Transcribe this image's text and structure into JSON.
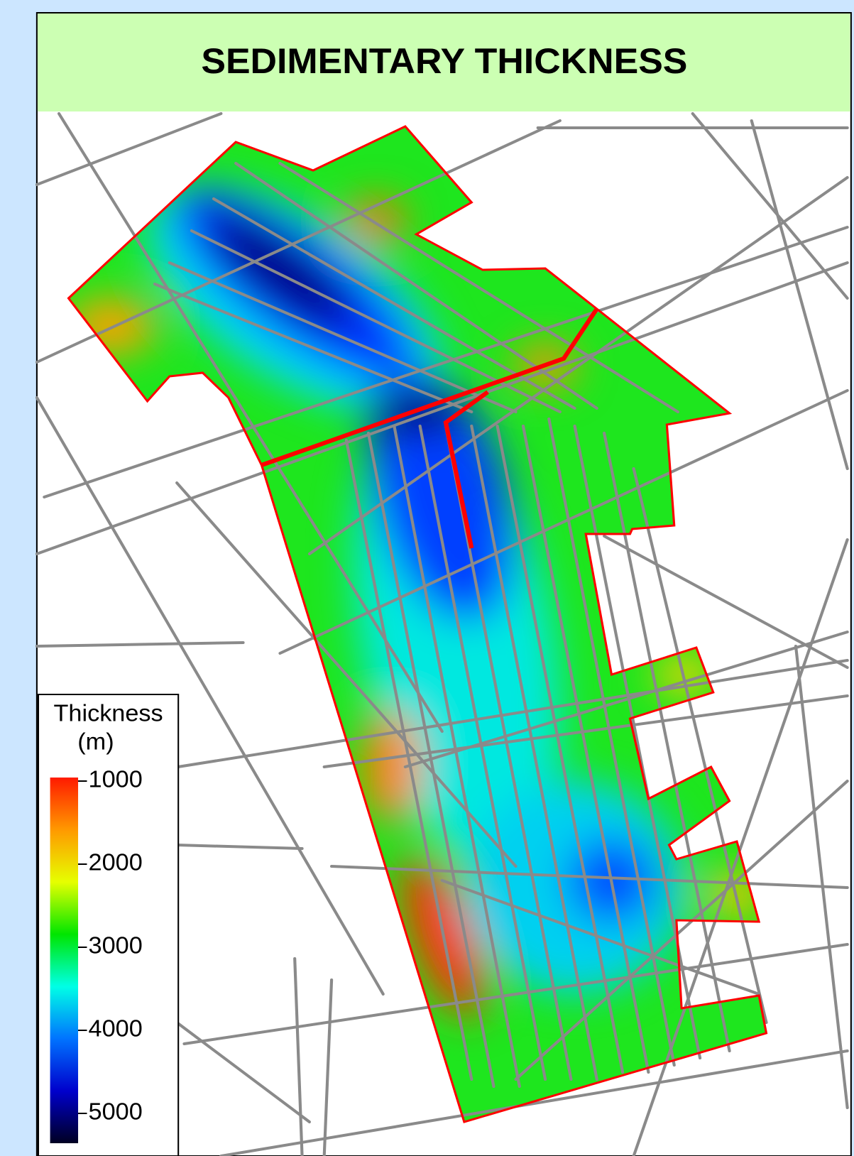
{
  "title": "SEDIMENTARY THICKNESS",
  "legend": {
    "title": "Thickness",
    "unit": "(m)",
    "range": [
      1000,
      5000
    ],
    "ticks": [
      1000,
      2000,
      3000,
      4000,
      5000
    ],
    "colors": [
      "#ff1a00",
      "#ff9900",
      "#e6ff00",
      "#00e600",
      "#00ffe6",
      "#0073ff",
      "#0000cc",
      "#000022"
    ]
  }
}
